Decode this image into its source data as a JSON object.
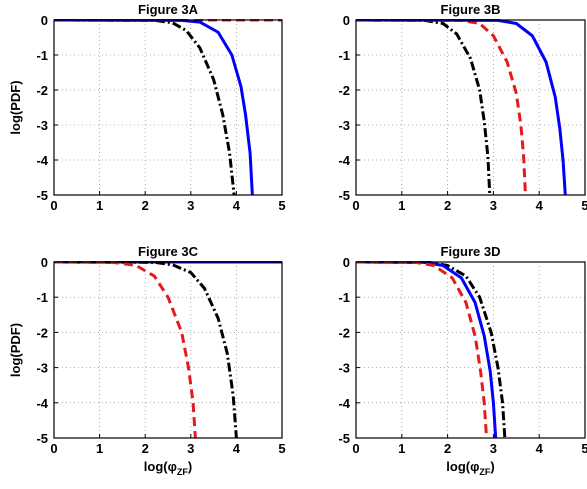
{
  "chart_data": [
    {
      "panel": "A",
      "type": "line",
      "title": "Figure 3A",
      "xlabel": "",
      "ylabel": "log(PDF)",
      "xlim": [
        0,
        5
      ],
      "ylim": [
        -5,
        0
      ],
      "xticks": [
        0,
        1,
        2,
        3,
        4,
        5
      ],
      "yticks": [
        0,
        -1,
        -2,
        -3,
        -4,
        -5
      ],
      "grid": true,
      "series": [
        {
          "style": "dashed",
          "color": "#e41a1c",
          "x": [
            0,
            5
          ],
          "y": [
            0,
            0
          ]
        },
        {
          "style": "dashdot",
          "color": "#000000",
          "x": [
            0,
            2.2,
            2.6,
            2.9,
            3.2,
            3.5,
            3.7,
            3.85,
            3.95
          ],
          "y": [
            0,
            -0.01,
            -0.08,
            -0.3,
            -0.8,
            -1.7,
            -2.7,
            -3.8,
            -5
          ]
        },
        {
          "style": "solid",
          "color": "#0000ff",
          "x": [
            0,
            2.8,
            3.2,
            3.6,
            3.9,
            4.1,
            4.2,
            4.3,
            4.35
          ],
          "y": [
            0,
            -0.01,
            -0.06,
            -0.35,
            -1.0,
            -1.9,
            -2.7,
            -3.8,
            -5
          ]
        }
      ]
    },
    {
      "panel": "B",
      "type": "line",
      "title": "Figure 3B",
      "xlabel": "",
      "ylabel": "",
      "xlim": [
        0,
        5
      ],
      "ylim": [
        -5,
        0
      ],
      "xticks": [
        0,
        1,
        2,
        3,
        4,
        5
      ],
      "yticks": [
        0,
        -1,
        -2,
        -3,
        -4,
        -5
      ],
      "grid": true,
      "series": [
        {
          "style": "dashdot",
          "color": "#000000",
          "x": [
            0,
            1.5,
            1.9,
            2.2,
            2.5,
            2.7,
            2.8,
            2.88,
            2.92
          ],
          "y": [
            0,
            -0.01,
            -0.1,
            -0.4,
            -1.1,
            -2.0,
            -2.9,
            -3.9,
            -5
          ]
        },
        {
          "style": "dashed",
          "color": "#e41a1c",
          "x": [
            0,
            2.3,
            2.7,
            3.0,
            3.3,
            3.5,
            3.6,
            3.66,
            3.7
          ],
          "y": [
            0,
            -0.01,
            -0.1,
            -0.45,
            -1.2,
            -2.1,
            -3.0,
            -3.9,
            -5
          ]
        },
        {
          "style": "solid",
          "color": "#0000ff",
          "x": [
            0,
            3.1,
            3.5,
            3.85,
            4.15,
            4.35,
            4.45,
            4.52,
            4.57
          ],
          "y": [
            0,
            -0.01,
            -0.1,
            -0.45,
            -1.2,
            -2.2,
            -3.1,
            -4.0,
            -5
          ]
        }
      ]
    },
    {
      "panel": "C",
      "type": "line",
      "title": "Figure 3C",
      "xlabel": "log(φZF)",
      "ylabel": "log(PDF)",
      "xlim": [
        0,
        5
      ],
      "ylim": [
        -5,
        0
      ],
      "xticks": [
        0,
        1,
        2,
        3,
        4,
        5
      ],
      "yticks": [
        0,
        -1,
        -2,
        -3,
        -4,
        -5
      ],
      "grid": true,
      "series": [
        {
          "style": "solid",
          "color": "#0000ff",
          "x": [
            0,
            5
          ],
          "y": [
            0,
            0
          ]
        },
        {
          "style": "dashdot",
          "color": "#000000",
          "x": [
            0,
            2.2,
            2.6,
            3.0,
            3.3,
            3.6,
            3.8,
            3.93,
            4.0
          ],
          "y": [
            0,
            -0.01,
            -0.08,
            -0.3,
            -0.75,
            -1.6,
            -2.6,
            -3.8,
            -5
          ]
        },
        {
          "style": "dashed",
          "color": "#e41a1c",
          "x": [
            0,
            1.3,
            1.8,
            2.2,
            2.5,
            2.8,
            2.95,
            3.05,
            3.1
          ],
          "y": [
            0,
            -0.01,
            -0.1,
            -0.4,
            -1.0,
            -2.0,
            -3.0,
            -4.0,
            -5
          ]
        }
      ]
    },
    {
      "panel": "D",
      "type": "line",
      "title": "Figure 3D",
      "xlabel": "log(φZF)",
      "ylabel": "",
      "xlim": [
        0,
        5
      ],
      "ylim": [
        -5,
        0
      ],
      "xticks": [
        0,
        1,
        2,
        3,
        4,
        5
      ],
      "yticks": [
        0,
        -1,
        -2,
        -3,
        -4,
        -5
      ],
      "grid": true,
      "series": [
        {
          "style": "dashdot",
          "color": "#000000",
          "x": [
            0,
            1.6,
            2.0,
            2.4,
            2.7,
            2.95,
            3.1,
            3.2,
            3.25
          ],
          "y": [
            0,
            -0.01,
            -0.1,
            -0.4,
            -1.0,
            -2.0,
            -3.0,
            -4.0,
            -5
          ]
        },
        {
          "style": "solid",
          "color": "#0000ff",
          "x": [
            0,
            1.5,
            1.9,
            2.3,
            2.6,
            2.8,
            2.93,
            3.0,
            3.05
          ],
          "y": [
            0,
            -0.01,
            -0.1,
            -0.45,
            -1.15,
            -2.1,
            -3.1,
            -4.0,
            -5
          ]
        },
        {
          "style": "dashed",
          "color": "#e41a1c",
          "x": [
            0,
            1.3,
            1.7,
            2.1,
            2.4,
            2.6,
            2.72,
            2.8,
            2.85
          ],
          "y": [
            0,
            -0.01,
            -0.1,
            -0.45,
            -1.15,
            -2.1,
            -3.1,
            -4.0,
            -5
          ]
        }
      ]
    }
  ]
}
